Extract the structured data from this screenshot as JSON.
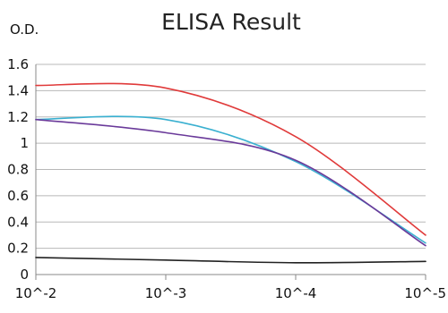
{
  "chart_data": {
    "type": "line",
    "title": "ELISA Result",
    "ylabel": "O.D.",
    "xlabel": "",
    "x": [
      0.01,
      0.001,
      0.0001,
      1e-05
    ],
    "x_tick_labels": [
      "10^-2",
      "10^-3",
      "10^-4",
      "10^-5"
    ],
    "x_scale": "log",
    "y_ticks": [
      0,
      0.2,
      0.4,
      0.6,
      0.8,
      1,
      1.2,
      1.4,
      1.6
    ],
    "y_tick_labels": [
      "0",
      "0.2",
      "0.4",
      "0.6",
      "0.8",
      "1",
      "1.2",
      "1.4",
      "1.6"
    ],
    "ylim": [
      0,
      1.6
    ],
    "grid": "horizontal",
    "legend": "none",
    "series": [
      {
        "color": "#e03a3a",
        "values": [
          1.44,
          1.42,
          1.05,
          0.3
        ]
      },
      {
        "color": "#3ab0d0",
        "values": [
          1.18,
          1.18,
          0.86,
          0.24
        ]
      },
      {
        "color": "#6a3a9a",
        "values": [
          1.18,
          1.08,
          0.87,
          0.22
        ]
      },
      {
        "color": "#222222",
        "values": [
          0.13,
          0.11,
          0.09,
          0.1
        ]
      }
    ]
  }
}
